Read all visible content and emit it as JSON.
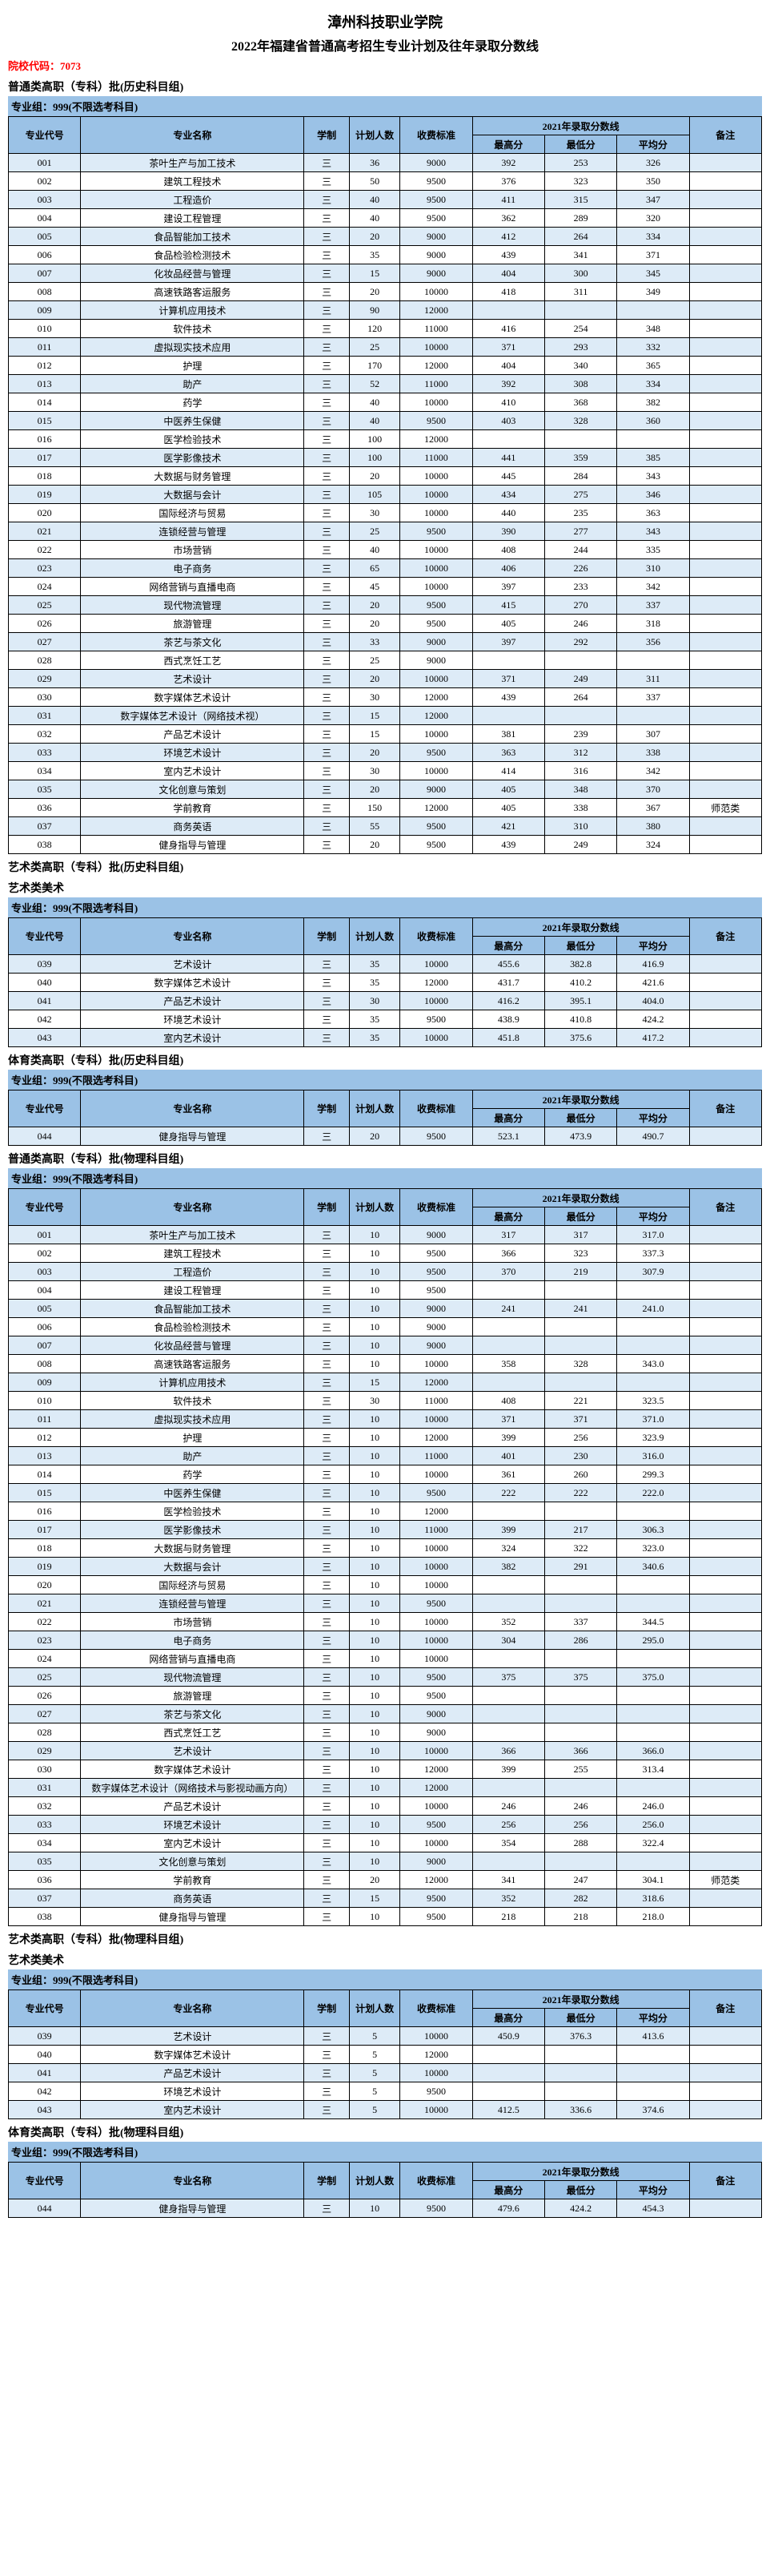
{
  "title": "漳州科技职业学院",
  "subtitle": "2022年福建省普通高考招生专业计划及往年录取分数线",
  "schoolCodeLabel": "院校代码：",
  "schoolCode": "7073",
  "columns": {
    "code": "专业代号",
    "name": "专业名称",
    "duration": "学制",
    "plan": "计划人数",
    "fee": "收费标准",
    "scoreGroup": "2021年录取分数线",
    "high": "最高分",
    "low": "最低分",
    "avg": "平均分",
    "note": "备注"
  },
  "durVal": "三",
  "noteShifan": "师范类",
  "sections": [
    {
      "title": "普通类高职（专科）批(历史科目组)",
      "group": "专业组：999(不限选考科目)",
      "rows": [
        [
          "001",
          "茶叶生产与加工技术",
          "36",
          "9000",
          "392",
          "253",
          "326",
          ""
        ],
        [
          "002",
          "建筑工程技术",
          "50",
          "9500",
          "376",
          "323",
          "350",
          ""
        ],
        [
          "003",
          "工程造价",
          "40",
          "9500",
          "411",
          "315",
          "347",
          ""
        ],
        [
          "004",
          "建设工程管理",
          "40",
          "9500",
          "362",
          "289",
          "320",
          ""
        ],
        [
          "005",
          "食品智能加工技术",
          "20",
          "9000",
          "412",
          "264",
          "334",
          ""
        ],
        [
          "006",
          "食品检验检测技术",
          "35",
          "9000",
          "439",
          "341",
          "371",
          ""
        ],
        [
          "007",
          "化妆品经营与管理",
          "15",
          "9000",
          "404",
          "300",
          "345",
          ""
        ],
        [
          "008",
          "高速铁路客运服务",
          "20",
          "10000",
          "418",
          "311",
          "349",
          ""
        ],
        [
          "009",
          "计算机应用技术",
          "90",
          "12000",
          "",
          "",
          "",
          ""
        ],
        [
          "010",
          "软件技术",
          "120",
          "11000",
          "416",
          "254",
          "348",
          ""
        ],
        [
          "011",
          "虚拟现实技术应用",
          "25",
          "10000",
          "371",
          "293",
          "332",
          ""
        ],
        [
          "012",
          "护理",
          "170",
          "12000",
          "404",
          "340",
          "365",
          ""
        ],
        [
          "013",
          "助产",
          "52",
          "11000",
          "392",
          "308",
          "334",
          ""
        ],
        [
          "014",
          "药学",
          "40",
          "10000",
          "410",
          "368",
          "382",
          ""
        ],
        [
          "015",
          "中医养生保健",
          "40",
          "9500",
          "403",
          "328",
          "360",
          ""
        ],
        [
          "016",
          "医学检验技术",
          "100",
          "12000",
          "",
          "",
          "",
          ""
        ],
        [
          "017",
          "医学影像技术",
          "100",
          "11000",
          "441",
          "359",
          "385",
          ""
        ],
        [
          "018",
          "大数据与财务管理",
          "20",
          "10000",
          "445",
          "284",
          "343",
          ""
        ],
        [
          "019",
          "大数据与会计",
          "105",
          "10000",
          "434",
          "275",
          "346",
          ""
        ],
        [
          "020",
          "国际经济与贸易",
          "30",
          "10000",
          "440",
          "235",
          "363",
          ""
        ],
        [
          "021",
          "连锁经营与管理",
          "25",
          "9500",
          "390",
          "277",
          "343",
          ""
        ],
        [
          "022",
          "市场营销",
          "40",
          "10000",
          "408",
          "244",
          "335",
          ""
        ],
        [
          "023",
          "电子商务",
          "65",
          "10000",
          "406",
          "226",
          "310",
          ""
        ],
        [
          "024",
          "网络营销与直播电商",
          "45",
          "10000",
          "397",
          "233",
          "342",
          ""
        ],
        [
          "025",
          "现代物流管理",
          "20",
          "9500",
          "415",
          "270",
          "337",
          ""
        ],
        [
          "026",
          "旅游管理",
          "20",
          "9500",
          "405",
          "246",
          "318",
          ""
        ],
        [
          "027",
          "茶艺与茶文化",
          "33",
          "9000",
          "397",
          "292",
          "356",
          ""
        ],
        [
          "028",
          "西式烹饪工艺",
          "25",
          "9000",
          "",
          "",
          "",
          ""
        ],
        [
          "029",
          "艺术设计",
          "20",
          "10000",
          "371",
          "249",
          "311",
          ""
        ],
        [
          "030",
          "数字媒体艺术设计",
          "30",
          "12000",
          "439",
          "264",
          "337",
          ""
        ],
        [
          "031",
          "数字媒体艺术设计（网络技术视）",
          "15",
          "12000",
          "",
          "",
          "",
          ""
        ],
        [
          "032",
          "产品艺术设计",
          "15",
          "10000",
          "381",
          "239",
          "307",
          ""
        ],
        [
          "033",
          "环境艺术设计",
          "20",
          "9500",
          "363",
          "312",
          "338",
          ""
        ],
        [
          "034",
          "室内艺术设计",
          "30",
          "10000",
          "414",
          "316",
          "342",
          ""
        ],
        [
          "035",
          "文化创意与策划",
          "20",
          "9000",
          "405",
          "348",
          "370",
          ""
        ],
        [
          "036",
          "学前教育",
          "150",
          "12000",
          "405",
          "338",
          "367",
          "师范类"
        ],
        [
          "037",
          "商务英语",
          "55",
          "9500",
          "421",
          "310",
          "380",
          ""
        ],
        [
          "038",
          "健身指导与管理",
          "20",
          "9500",
          "439",
          "249",
          "324",
          ""
        ]
      ]
    },
    {
      "title": "艺术类高职（专科）批(历史科目组)",
      "sub": "艺术类美术",
      "group": "专业组：999(不限选考科目)",
      "rows": [
        [
          "039",
          "艺术设计",
          "35",
          "10000",
          "455.6",
          "382.8",
          "416.9",
          ""
        ],
        [
          "040",
          "数字媒体艺术设计",
          "35",
          "12000",
          "431.7",
          "410.2",
          "421.6",
          ""
        ],
        [
          "041",
          "产品艺术设计",
          "30",
          "10000",
          "416.2",
          "395.1",
          "404.0",
          ""
        ],
        [
          "042",
          "环境艺术设计",
          "35",
          "9500",
          "438.9",
          "410.8",
          "424.2",
          ""
        ],
        [
          "043",
          "室内艺术设计",
          "35",
          "10000",
          "451.8",
          "375.6",
          "417.2",
          ""
        ]
      ]
    },
    {
      "title": "体育类高职（专科）批(历史科目组)",
      "group": "专业组：999(不限选考科目)",
      "rows": [
        [
          "044",
          "健身指导与管理",
          "20",
          "9500",
          "523.1",
          "473.9",
          "490.7",
          ""
        ]
      ]
    },
    {
      "title": "普通类高职（专科）批(物理科目组)",
      "group": "专业组：999(不限选考科目)",
      "rows": [
        [
          "001",
          "茶叶生产与加工技术",
          "10",
          "9000",
          "317",
          "317",
          "317.0",
          ""
        ],
        [
          "002",
          "建筑工程技术",
          "10",
          "9500",
          "366",
          "323",
          "337.3",
          ""
        ],
        [
          "003",
          "工程造价",
          "10",
          "9500",
          "370",
          "219",
          "307.9",
          ""
        ],
        [
          "004",
          "建设工程管理",
          "10",
          "9500",
          "",
          "",
          "",
          ""
        ],
        [
          "005",
          "食品智能加工技术",
          "10",
          "9000",
          "241",
          "241",
          "241.0",
          ""
        ],
        [
          "006",
          "食品检验检测技术",
          "10",
          "9000",
          "",
          "",
          "",
          ""
        ],
        [
          "007",
          "化妆品经营与管理",
          "10",
          "9000",
          "",
          "",
          "",
          ""
        ],
        [
          "008",
          "高速铁路客运服务",
          "10",
          "10000",
          "358",
          "328",
          "343.0",
          ""
        ],
        [
          "009",
          "计算机应用技术",
          "15",
          "12000",
          "",
          "",
          "",
          ""
        ],
        [
          "010",
          "软件技术",
          "30",
          "11000",
          "408",
          "221",
          "323.5",
          ""
        ],
        [
          "011",
          "虚拟现实技术应用",
          "10",
          "10000",
          "371",
          "371",
          "371.0",
          ""
        ],
        [
          "012",
          "护理",
          "10",
          "12000",
          "399",
          "256",
          "323.9",
          ""
        ],
        [
          "013",
          "助产",
          "10",
          "11000",
          "401",
          "230",
          "316.0",
          ""
        ],
        [
          "014",
          "药学",
          "10",
          "10000",
          "361",
          "260",
          "299.3",
          ""
        ],
        [
          "015",
          "中医养生保健",
          "10",
          "9500",
          "222",
          "222",
          "222.0",
          ""
        ],
        [
          "016",
          "医学检验技术",
          "10",
          "12000",
          "",
          "",
          "",
          ""
        ],
        [
          "017",
          "医学影像技术",
          "10",
          "11000",
          "399",
          "217",
          "306.3",
          ""
        ],
        [
          "018",
          "大数据与财务管理",
          "10",
          "10000",
          "324",
          "322",
          "323.0",
          ""
        ],
        [
          "019",
          "大数据与会计",
          "10",
          "10000",
          "382",
          "291",
          "340.6",
          ""
        ],
        [
          "020",
          "国际经济与贸易",
          "10",
          "10000",
          "",
          "",
          "",
          ""
        ],
        [
          "021",
          "连锁经营与管理",
          "10",
          "9500",
          "",
          "",
          "",
          ""
        ],
        [
          "022",
          "市场营销",
          "10",
          "10000",
          "352",
          "337",
          "344.5",
          ""
        ],
        [
          "023",
          "电子商务",
          "10",
          "10000",
          "304",
          "286",
          "295.0",
          ""
        ],
        [
          "024",
          "网络营销与直播电商",
          "10",
          "10000",
          "",
          "",
          "",
          ""
        ],
        [
          "025",
          "现代物流管理",
          "10",
          "9500",
          "375",
          "375",
          "375.0",
          ""
        ],
        [
          "026",
          "旅游管理",
          "10",
          "9500",
          "",
          "",
          "",
          ""
        ],
        [
          "027",
          "茶艺与茶文化",
          "10",
          "9000",
          "",
          "",
          "",
          ""
        ],
        [
          "028",
          "西式烹饪工艺",
          "10",
          "9000",
          "",
          "",
          "",
          ""
        ],
        [
          "029",
          "艺术设计",
          "10",
          "10000",
          "366",
          "366",
          "366.0",
          ""
        ],
        [
          "030",
          "数字媒体艺术设计",
          "10",
          "12000",
          "399",
          "255",
          "313.4",
          ""
        ],
        [
          "031",
          "数字媒体艺术设计（网络技术与影视动画方向）",
          "10",
          "12000",
          "",
          "",
          "",
          ""
        ],
        [
          "032",
          "产品艺术设计",
          "10",
          "10000",
          "246",
          "246",
          "246.0",
          ""
        ],
        [
          "033",
          "环境艺术设计",
          "10",
          "9500",
          "256",
          "256",
          "256.0",
          ""
        ],
        [
          "034",
          "室内艺术设计",
          "10",
          "10000",
          "354",
          "288",
          "322.4",
          ""
        ],
        [
          "035",
          "文化创意与策划",
          "10",
          "9000",
          "",
          "",
          "",
          ""
        ],
        [
          "036",
          "学前教育",
          "20",
          "12000",
          "341",
          "247",
          "304.1",
          "师范类"
        ],
        [
          "037",
          "商务英语",
          "15",
          "9500",
          "352",
          "282",
          "318.6",
          ""
        ],
        [
          "038",
          "健身指导与管理",
          "10",
          "9500",
          "218",
          "218",
          "218.0",
          ""
        ]
      ]
    },
    {
      "title": "艺术类高职（专科）批(物理科目组)",
      "sub": "艺术类美术",
      "group": "专业组：999(不限选考科目)",
      "rows": [
        [
          "039",
          "艺术设计",
          "5",
          "10000",
          "450.9",
          "376.3",
          "413.6",
          ""
        ],
        [
          "040",
          "数字媒体艺术设计",
          "5",
          "12000",
          "",
          "",
          "",
          ""
        ],
        [
          "041",
          "产品艺术设计",
          "5",
          "10000",
          "",
          "",
          "",
          ""
        ],
        [
          "042",
          "环境艺术设计",
          "5",
          "9500",
          "",
          "",
          "",
          ""
        ],
        [
          "043",
          "室内艺术设计",
          "5",
          "10000",
          "412.5",
          "336.6",
          "374.6",
          ""
        ]
      ]
    },
    {
      "title": "体育类高职（专科）批(物理科目组)",
      "group": "专业组：999(不限选考科目)",
      "rows": [
        [
          "044",
          "健身指导与管理",
          "10",
          "9500",
          "479.6",
          "424.2",
          "454.3",
          ""
        ]
      ]
    }
  ]
}
